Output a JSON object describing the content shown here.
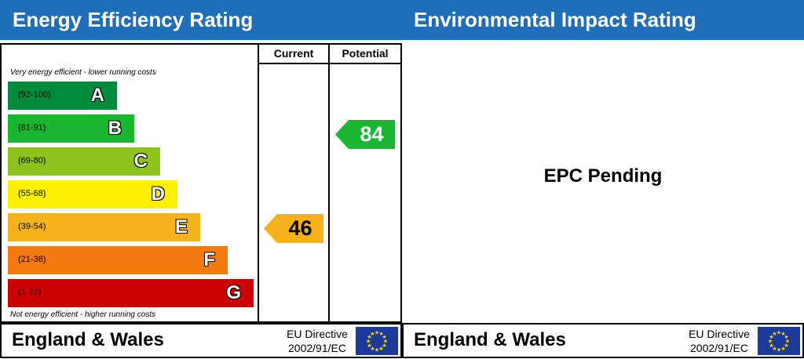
{
  "energy": {
    "title": "Energy Efficiency Rating",
    "column_current": "Current",
    "column_potential": "Potential",
    "note_top": "Very energy efficient - lower running costs",
    "note_bottom": "Not energy efficient - higher running costs",
    "bands": [
      {
        "letter": "A",
        "range": "(92-100)",
        "color": "#008a3b"
      },
      {
        "letter": "B",
        "range": "(81-91)",
        "color": "#1bb631"
      },
      {
        "letter": "C",
        "range": "(69-80)",
        "color": "#8dc31c"
      },
      {
        "letter": "D",
        "range": "(55-68)",
        "color": "#ffef00"
      },
      {
        "letter": "E",
        "range": "(39-54)",
        "color": "#f6b21a"
      },
      {
        "letter": "F",
        "range": "(21-38)",
        "color": "#f27a0f"
      },
      {
        "letter": "G",
        "range": "(1-20)",
        "color": "#cc0000"
      }
    ],
    "current": {
      "value": "46",
      "band": "E",
      "color": "#f6b21a"
    },
    "potential": {
      "value": "84",
      "band": "B",
      "color": "#1bb631"
    },
    "footer": {
      "region": "England & Wales",
      "directive_line1": "EU Directive",
      "directive_line2": "2002/91/EC"
    }
  },
  "environment": {
    "title": "Environmental Impact Rating",
    "status": "EPC Pending",
    "footer": {
      "region": "England & Wales",
      "directive_line1": "EU Directive",
      "directive_line2": "2002/91/EC"
    }
  }
}
